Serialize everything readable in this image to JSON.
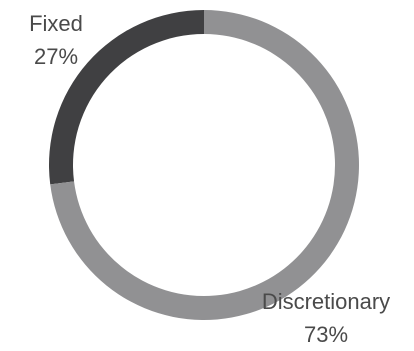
{
  "chart_data": {
    "type": "pie",
    "variant": "donut",
    "title": "",
    "slices": [
      {
        "label": "Fixed",
        "value": 27,
        "display": "27%",
        "color": "#404042"
      },
      {
        "label": "Discretionary",
        "value": 73,
        "display": "73%",
        "color": "#919193"
      }
    ],
    "legend": "none",
    "grid": false
  }
}
